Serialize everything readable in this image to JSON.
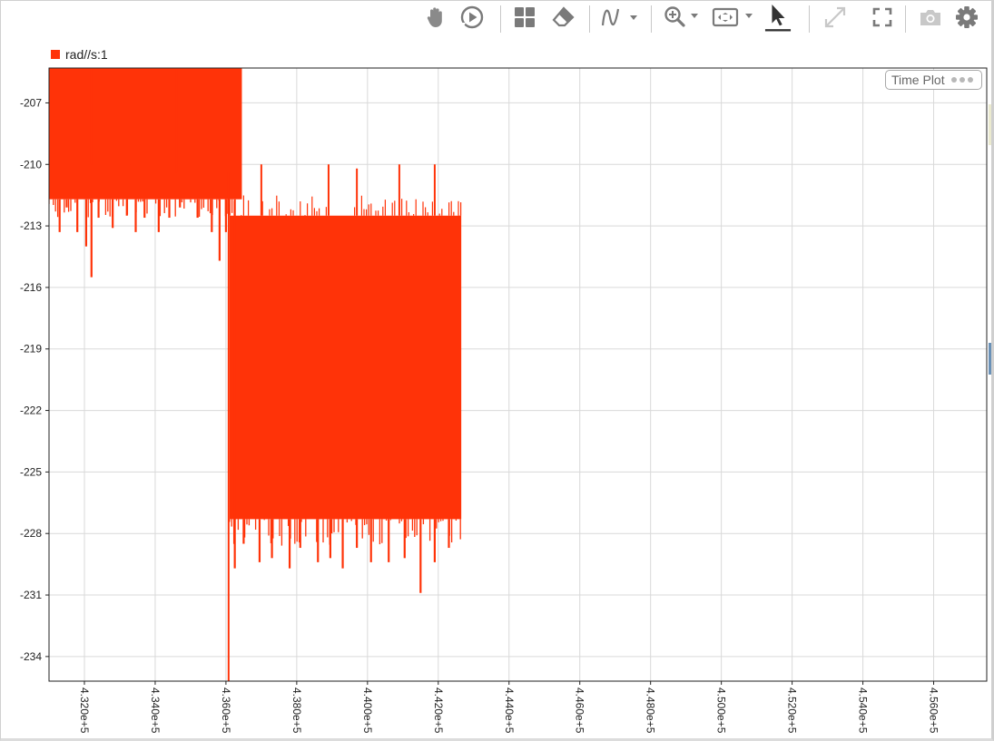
{
  "toolbar": {
    "items": [
      {
        "name": "pan-tool",
        "icon": "hand-icon"
      },
      {
        "name": "play-button",
        "icon": "play-circle-icon"
      },
      {
        "name": "layout-button",
        "icon": "grid-icon"
      },
      {
        "name": "eraser-button",
        "icon": "eraser-icon"
      },
      {
        "name": "signal-menu",
        "icon": "waveform-icon"
      },
      {
        "name": "zoom-menu",
        "icon": "zoom-in-icon"
      },
      {
        "name": "fit-menu",
        "icon": "fit-to-view-icon"
      },
      {
        "name": "cursor-tool",
        "icon": "cursor-arrow-icon"
      },
      {
        "name": "expand-button",
        "icon": "expand-icon"
      },
      {
        "name": "fullscreen-button",
        "icon": "fullscreen-icon"
      },
      {
        "name": "snapshot-button",
        "icon": "camera-icon"
      },
      {
        "name": "settings-button",
        "icon": "gear-icon"
      }
    ],
    "colors": {
      "icon": "#7a7a7a",
      "icon_disabled": "#c8c8c8",
      "active_underline": "#333333"
    }
  },
  "plot": {
    "badge_label": "Time Plot"
  },
  "chart_data": {
    "type": "line",
    "series": [
      {
        "name": "rad//s:1",
        "color": "#ff3308"
      }
    ],
    "xlim": [
      431000,
      457500
    ],
    "ylim": [
      -235.2,
      -205.3
    ],
    "xticks": [
      432000,
      434000,
      436000,
      438000,
      440000,
      442000,
      444000,
      446000,
      448000,
      450000,
      452000,
      454000,
      456000
    ],
    "xtick_labels": [
      "4.320e+5",
      "4.340e+5",
      "4.360e+5",
      "4.380e+5",
      "4.400e+5",
      "4.420e+5",
      "4.440e+5",
      "4.460e+5",
      "4.480e+5",
      "4.500e+5",
      "4.520e+5",
      "4.540e+5",
      "4.560e+5"
    ],
    "yticks": [
      -207,
      -210,
      -213,
      -216,
      -219,
      -222,
      -225,
      -228,
      -231,
      -234
    ],
    "ytick_labels": [
      "-207",
      "-210",
      "-213",
      "-216",
      "-219",
      "-222",
      "-225",
      "-228",
      "-231",
      "-234"
    ],
    "grid": true,
    "legend_position": "top-left",
    "segments": [
      {
        "x_start": 431000,
        "x_end": 436450,
        "y_top": -205.3,
        "y_band_bottom": -211.7,
        "y_noise_min": -212.6
      },
      {
        "x_start": 436050,
        "x_end": 436100,
        "y_top": -210.4,
        "y_band_bottom": -235.2,
        "y_noise_min": -235.2
      },
      {
        "x_start": 436100,
        "x_end": 442650,
        "y_top": -212.5,
        "y_band_bottom": -227.3,
        "y_noise_min": -228.7
      }
    ],
    "excursions": [
      {
        "x": 431300,
        "y_low": -213.3
      },
      {
        "x": 431500,
        "y_low": -212.1
      },
      {
        "x": 431800,
        "y_low": -213.3
      },
      {
        "x": 432050,
        "y_low": -214.0
      },
      {
        "x": 432200,
        "y_low": -215.5
      },
      {
        "x": 432400,
        "y_low": -212.6
      },
      {
        "x": 432800,
        "y_low": -213.1
      },
      {
        "x": 433200,
        "y_low": -212.5
      },
      {
        "x": 433450,
        "y_low": -213.3
      },
      {
        "x": 433700,
        "y_low": -212.6
      },
      {
        "x": 434100,
        "y_low": -213.3
      },
      {
        "x": 434400,
        "y_low": -212.6
      },
      {
        "x": 434700,
        "y_low": -212.1
      },
      {
        "x": 435200,
        "y_low": -212.6
      },
      {
        "x": 435600,
        "y_low": -213.3
      },
      {
        "x": 435820,
        "y_low": -214.7
      },
      {
        "x": 436000,
        "y_low": -213.3
      },
      {
        "x": 436250,
        "y_low": -229.7
      },
      {
        "x": 436500,
        "y_low": -228.5
      },
      {
        "x": 436950,
        "y_low": -229.4
      },
      {
        "x": 437300,
        "y_low": -229.2
      },
      {
        "x": 437800,
        "y_low": -229.7
      },
      {
        "x": 438100,
        "y_low": -228.7
      },
      {
        "x": 438600,
        "y_low": -229.4
      },
      {
        "x": 438950,
        "y_low": -229.2
      },
      {
        "x": 439300,
        "y_low": -229.7
      },
      {
        "x": 439700,
        "y_low": -228.7
      },
      {
        "x": 440100,
        "y_low": -229.4
      },
      {
        "x": 440600,
        "y_low": -229.4
      },
      {
        "x": 441050,
        "y_low": -229.2
      },
      {
        "x": 441500,
        "y_low": -230.9
      },
      {
        "x": 441900,
        "y_low": -229.4
      },
      {
        "x": 442300,
        "y_low": -228.7
      }
    ],
    "spikes": [
      {
        "x": 432200,
        "y_high": -210.0
      },
      {
        "x": 433300,
        "y_high": -210.0
      },
      {
        "x": 434600,
        "y_high": -210.4
      },
      {
        "x": 437000,
        "y_high": -210.0
      },
      {
        "x": 438900,
        "y_high": -210.0
      },
      {
        "x": 439700,
        "y_high": -210.2
      },
      {
        "x": 440900,
        "y_high": -210.0
      },
      {
        "x": 441900,
        "y_high": -210.0
      },
      {
        "x": 442600,
        "y_high": -212.6
      }
    ]
  }
}
